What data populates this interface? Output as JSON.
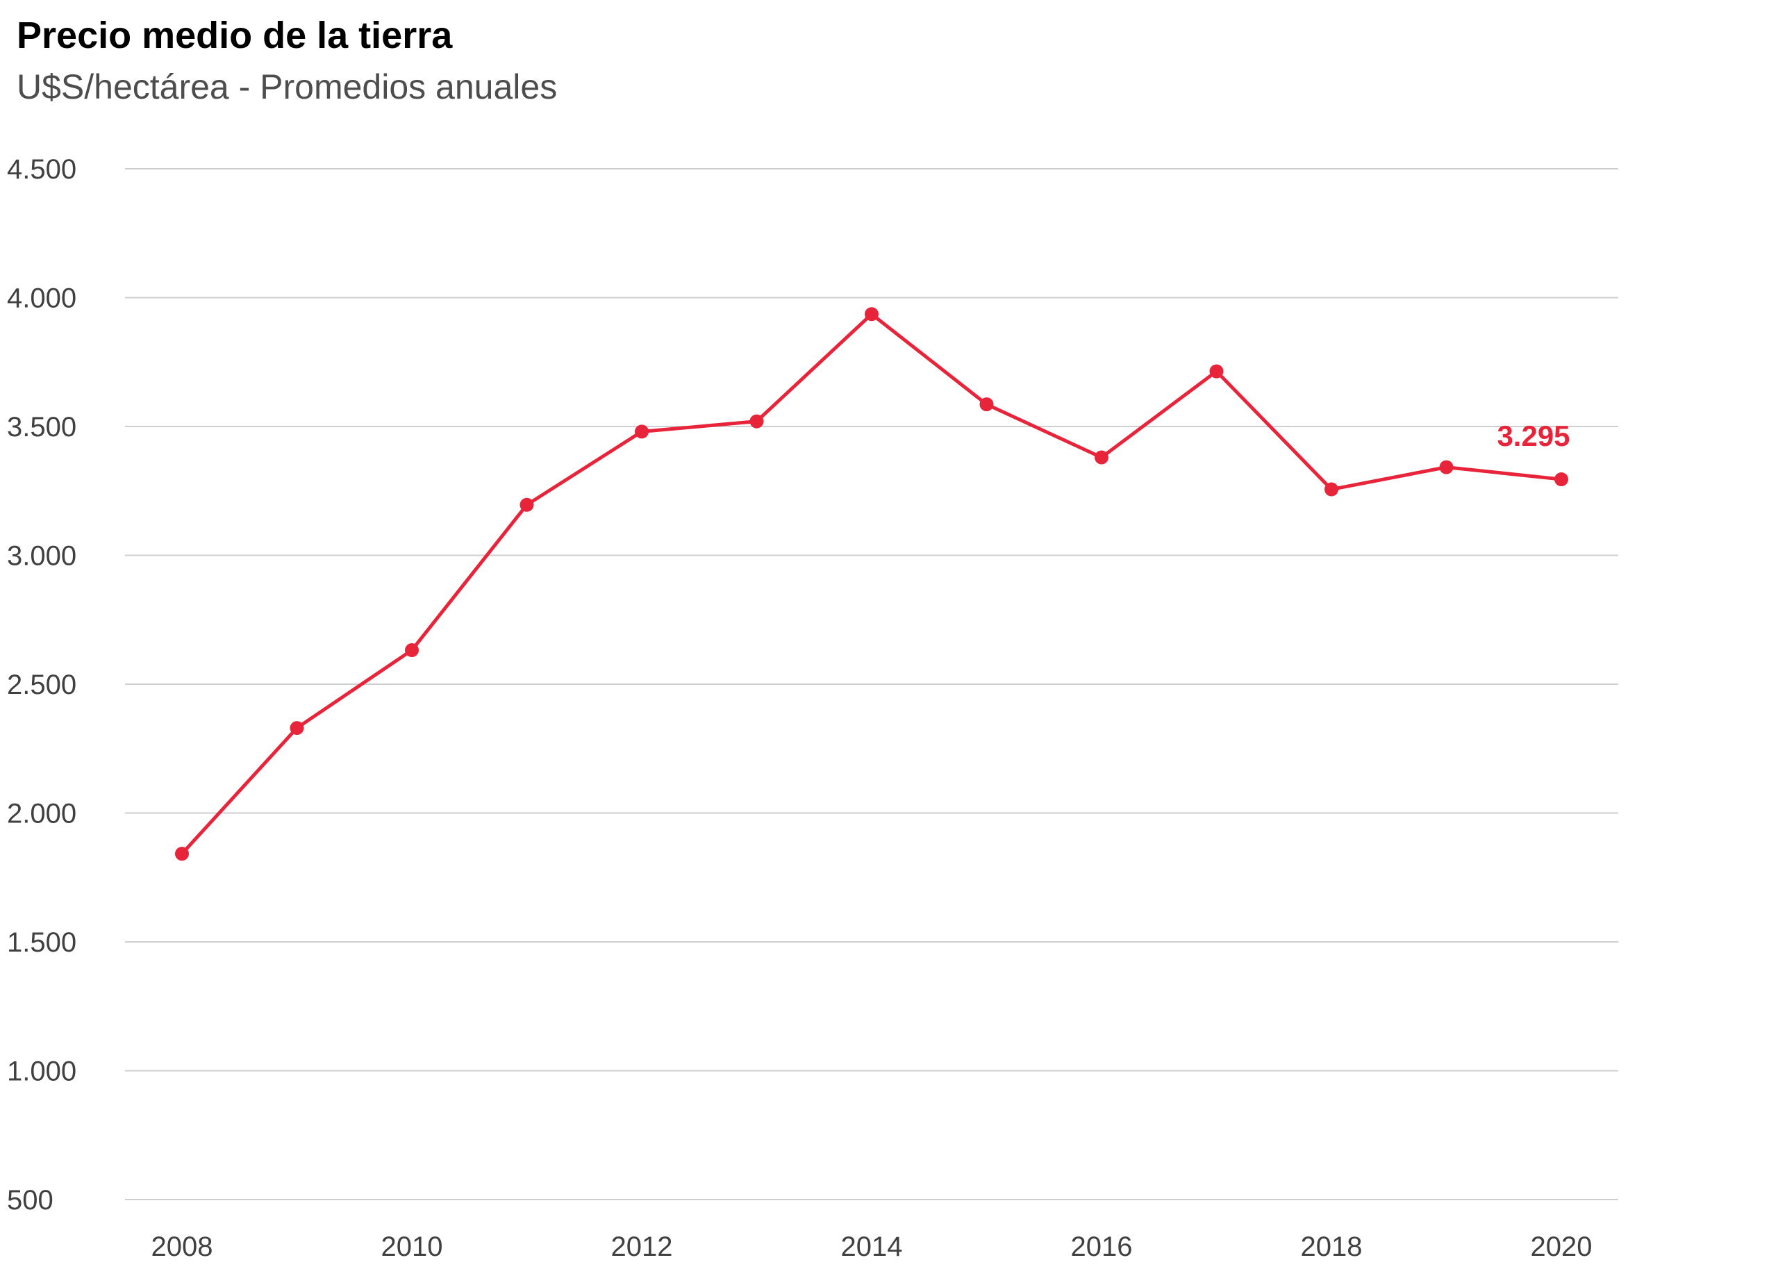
{
  "colors": {
    "series": "#e8243a",
    "grid": "#cfcfcf",
    "axis_text": "#404040",
    "title": "#000000",
    "subtitle": "#4d4d4d"
  },
  "chart_data": {
    "type": "line",
    "title": "Precio medio de la tierra",
    "subtitle": "U$S/hectárea - Promedios anuales",
    "xlabel": "",
    "ylabel": "",
    "x": [
      2008,
      2009,
      2010,
      2011,
      2012,
      2013,
      2014,
      2015,
      2016,
      2017,
      2018,
      2019,
      2020
    ],
    "x_tick_values": [
      2008,
      2010,
      2012,
      2014,
      2016,
      2018,
      2020
    ],
    "x_tick_labels": [
      "2008",
      "2010",
      "2012",
      "2014",
      "2016",
      "2018",
      "2020"
    ],
    "y_tick_values": [
      500,
      1000,
      1500,
      2000,
      2500,
      3000,
      3500,
      4000,
      4500
    ],
    "y_tick_labels": [
      "500",
      "1.000",
      "1.500",
      "2.000",
      "2.500",
      "3.000",
      "3.500",
      "4.000",
      "4.500"
    ],
    "ylim": [
      500,
      4500
    ],
    "xlim": [
      2008,
      2020
    ],
    "grid": "horizontal",
    "legend": "none",
    "series": [
      {
        "values": [
          1842,
          2330,
          2632,
          3196,
          3480,
          3520,
          3936,
          3586,
          3380,
          3714,
          3256,
          3342,
          3295
        ]
      }
    ],
    "annotations": [
      {
        "x": 2020,
        "value": 3295,
        "text": "3.295"
      }
    ]
  }
}
